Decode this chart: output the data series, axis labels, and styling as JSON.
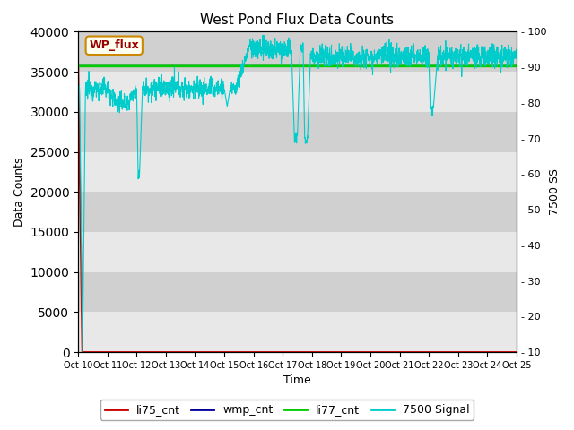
{
  "title": "West Pond Flux Data Counts",
  "xlabel": "Time",
  "ylabel_left": "Data Counts",
  "ylabel_right": "7500 SS",
  "annotation_text": "WP_flux",
  "x_tick_labels": [
    "Oct 10",
    "Oct 11",
    "Oct 12",
    "Oct 13",
    "Oct 14",
    "Oct 15",
    "Oct 16",
    "Oct 17",
    "Oct 18",
    "Oct 19",
    "Oct 20",
    "Oct 21",
    "Oct 22",
    "Oct 23",
    "Oct 24",
    "Oct 25"
  ],
  "ylim_left": [
    0,
    40000
  ],
  "ylim_right": [
    10,
    100
  ],
  "yticks_left": [
    0,
    5000,
    10000,
    15000,
    20000,
    25000,
    30000,
    35000,
    40000
  ],
  "yticks_right": [
    10,
    20,
    30,
    40,
    50,
    60,
    70,
    80,
    90,
    100
  ],
  "bg_color_light": "#e8e8e8",
  "bg_color_dark": "#d0d0d0",
  "legend_items": [
    "li75_cnt",
    "wmp_cnt",
    "li77_cnt",
    "7500 Signal"
  ],
  "legend_colors": [
    "#cc0000",
    "#000099",
    "#00cc00",
    "#00cccc"
  ],
  "li75_color": "#cc0000",
  "wmp_color": "#000099",
  "li77_color": "#00cc00",
  "signal_color": "#00cccc",
  "n_days": 15,
  "n_points": 2000
}
